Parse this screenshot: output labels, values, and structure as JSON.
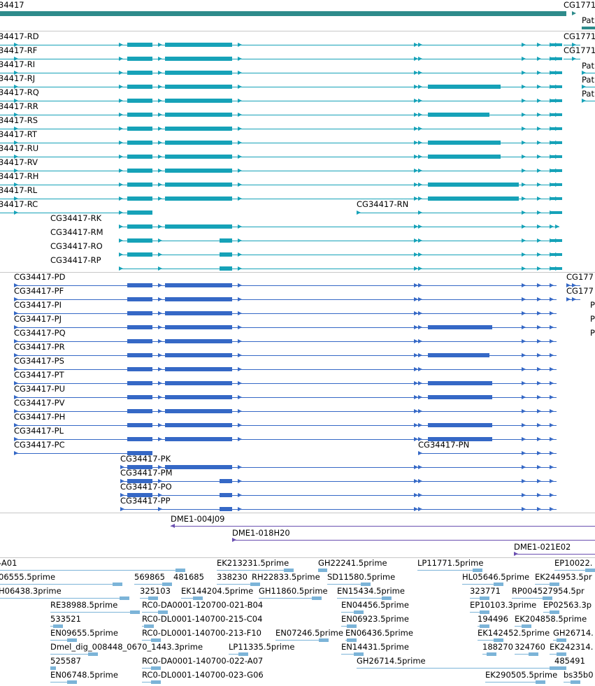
{
  "colors": {
    "gene": "#2e8b8b",
    "transcript": "#16a2b8",
    "cds": "#3568c6",
    "clone": "#6a4fb0",
    "est": "#7cb4d8"
  },
  "tracks": {
    "gene": {
      "name": "gene-track",
      "labels": [
        "34417",
        "CG1771",
        "Pat"
      ]
    },
    "transcripts": {
      "name": "transcript-track",
      "rows": [
        {
          "label": "34417-RD",
          "exons": "A"
        },
        {
          "label": "34417-RF",
          "exons": "A"
        },
        {
          "label": "34417-RI",
          "exons": "A"
        },
        {
          "label": "34417-RJ",
          "exons": "B"
        },
        {
          "label": "34417-RQ",
          "exons": "A"
        },
        {
          "label": "34417-RR",
          "exons": "C"
        },
        {
          "label": "34417-RS",
          "exons": "A"
        },
        {
          "label": "34417-RT",
          "exons": "B"
        },
        {
          "label": "34417-RU",
          "exons": "B"
        },
        {
          "label": "34417-RV",
          "exons": "A"
        },
        {
          "label": "34417-RH",
          "exons": "D"
        },
        {
          "label": "34417-RL",
          "exons": "D"
        },
        {
          "label": "34417-RC",
          "exons": "E"
        },
        {
          "label": "CG34417-RK",
          "exons": "F"
        },
        {
          "label": "CG34417-RM",
          "exons": "G"
        },
        {
          "label": "CG34417-RO",
          "exons": "H"
        },
        {
          "label": "CG34417-RP",
          "exons": "I"
        }
      ],
      "side_labels": [
        "CG1771",
        "CG1771",
        "Pat",
        "Pat",
        "Pat"
      ],
      "rn_label": "CG34417-RN"
    },
    "cds": {
      "name": "cds-track",
      "rows": [
        {
          "label": "CG34417-PD",
          "exons": "A"
        },
        {
          "label": "CG34417-PF",
          "exons": "A"
        },
        {
          "label": "CG34417-PI",
          "exons": "A"
        },
        {
          "label": "CG34417-PJ",
          "exons": "B"
        },
        {
          "label": "CG34417-PQ",
          "exons": "A"
        },
        {
          "label": "CG34417-PR",
          "exons": "C"
        },
        {
          "label": "CG34417-PS",
          "exons": "A"
        },
        {
          "label": "CG34417-PT",
          "exons": "B"
        },
        {
          "label": "CG34417-PU",
          "exons": "B"
        },
        {
          "label": "CG34417-PV",
          "exons": "A"
        },
        {
          "label": "CG34417-PH",
          "exons": "D"
        },
        {
          "label": "CG34417-PL",
          "exons": "D"
        },
        {
          "label": "CG34417-PC",
          "exons": "E"
        },
        {
          "label": "CG34417-PK",
          "exons": "F"
        },
        {
          "label": "CG34417-PM",
          "exons": "G"
        },
        {
          "label": "CG34417-PO",
          "exons": "H"
        },
        {
          "label": "CG34417-PP",
          "exons": "I"
        }
      ],
      "side_labels": [
        "CG177",
        "CG177",
        "P",
        "P",
        "P"
      ],
      "pn_label": "CG34417-PN"
    },
    "clones": {
      "name": "clone-track",
      "labels": [
        "DME1-004J09",
        "DME1-018H20",
        "DME1-021E02"
      ]
    },
    "ests": {
      "name": "est-track",
      "labels": [
        "-A01",
        "EK213231.5prime",
        "GH22241.5prime",
        "LP11771.5prime",
        "EP10022.",
        "06555.5prime",
        "569865",
        "481685",
        "338230",
        "RH22833.5prime",
        "SD11580.5prime",
        "HL05646.5prime",
        "EK244953.5pr",
        "H06438.3prime",
        "325103",
        "EK144204.5prime",
        "GH11860.5prime",
        "EN15434.5prime",
        "323771",
        "RP004527954.5pr",
        "RE38988.5prime",
        "RC0-DA0001-120700-021-B04",
        "EN04456.5prime",
        "EP10103.3prime",
        "EP02563.3p",
        "533521",
        "RC0-DL0001-140700-215-C04",
        "EN06923.5prime",
        "194496",
        "EK204858.5prime",
        "EN09655.5prime",
        "RC0-DL0001-140700-213-F10",
        "EN07246.5prime",
        "EN06436.5prime",
        "EK142452.5prime",
        "GH26714.",
        "Dmel_dig_008448_0670_1443.3prime",
        "LP11335.5prime",
        "EN14431.5prime",
        "188270",
        "324760",
        "EK242314.",
        "525587",
        "RC0-DA0001-140700-022-A07",
        "GH26714.5prime",
        "485491",
        "EN06748.5prime",
        "RC0-DL0001-140700-023-G06",
        "EK290505.5prime",
        "bs35b0"
      ]
    }
  }
}
